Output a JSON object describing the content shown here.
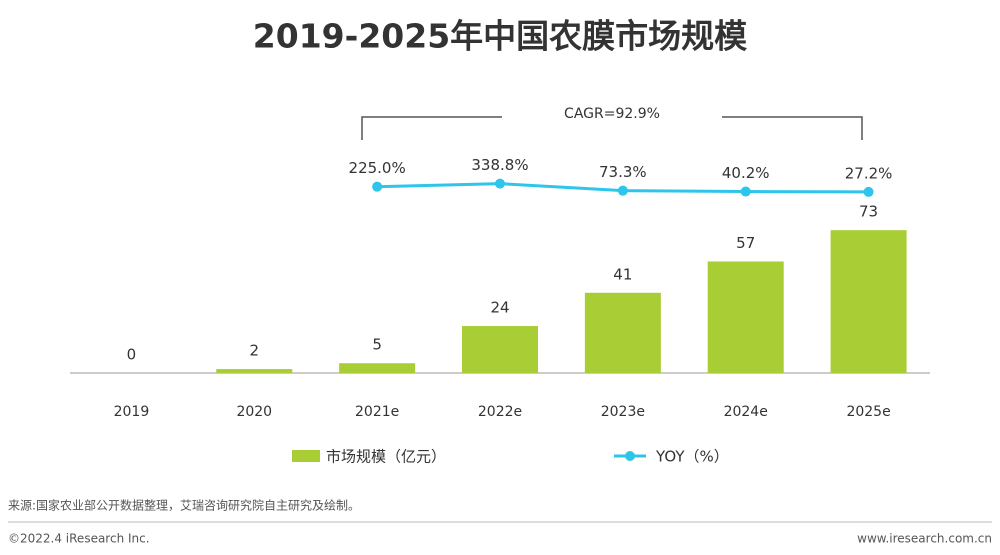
{
  "chart_data": {
    "type": "bar",
    "title": "2019-2025年中国农膜市场规模",
    "categories": [
      "2019",
      "2020",
      "2021e",
      "2022e",
      "2023e",
      "2024e",
      "2025e"
    ],
    "series": [
      {
        "name": "市场规模（亿元）",
        "type": "bar",
        "color": "#a8cd35",
        "values": [
          0,
          2,
          5,
          24,
          41,
          57,
          73
        ]
      },
      {
        "name": "YOY（%）",
        "type": "line",
        "axis": "y2",
        "color": "#2ec5ea",
        "values": [
          null,
          null,
          225.0,
          338.8,
          73.3,
          40.2,
          27.2
        ],
        "value_labels": [
          null,
          null,
          "225.0%",
          "338.8%",
          "73.3%",
          "40.2%",
          "27.2%"
        ]
      }
    ],
    "ylim": [
      0,
      160
    ],
    "y2lim": [
      -6800,
      5000
    ],
    "annotation": "CAGR=92.9%",
    "legend": "bottom"
  },
  "footer": {
    "source": "来源:国家农业部公开数据整理，艾瑞咨询研究院自主研究及绘制。",
    "copyright": "©2022.4 iResearch Inc.",
    "website": "www.iresearch.com.cn"
  }
}
